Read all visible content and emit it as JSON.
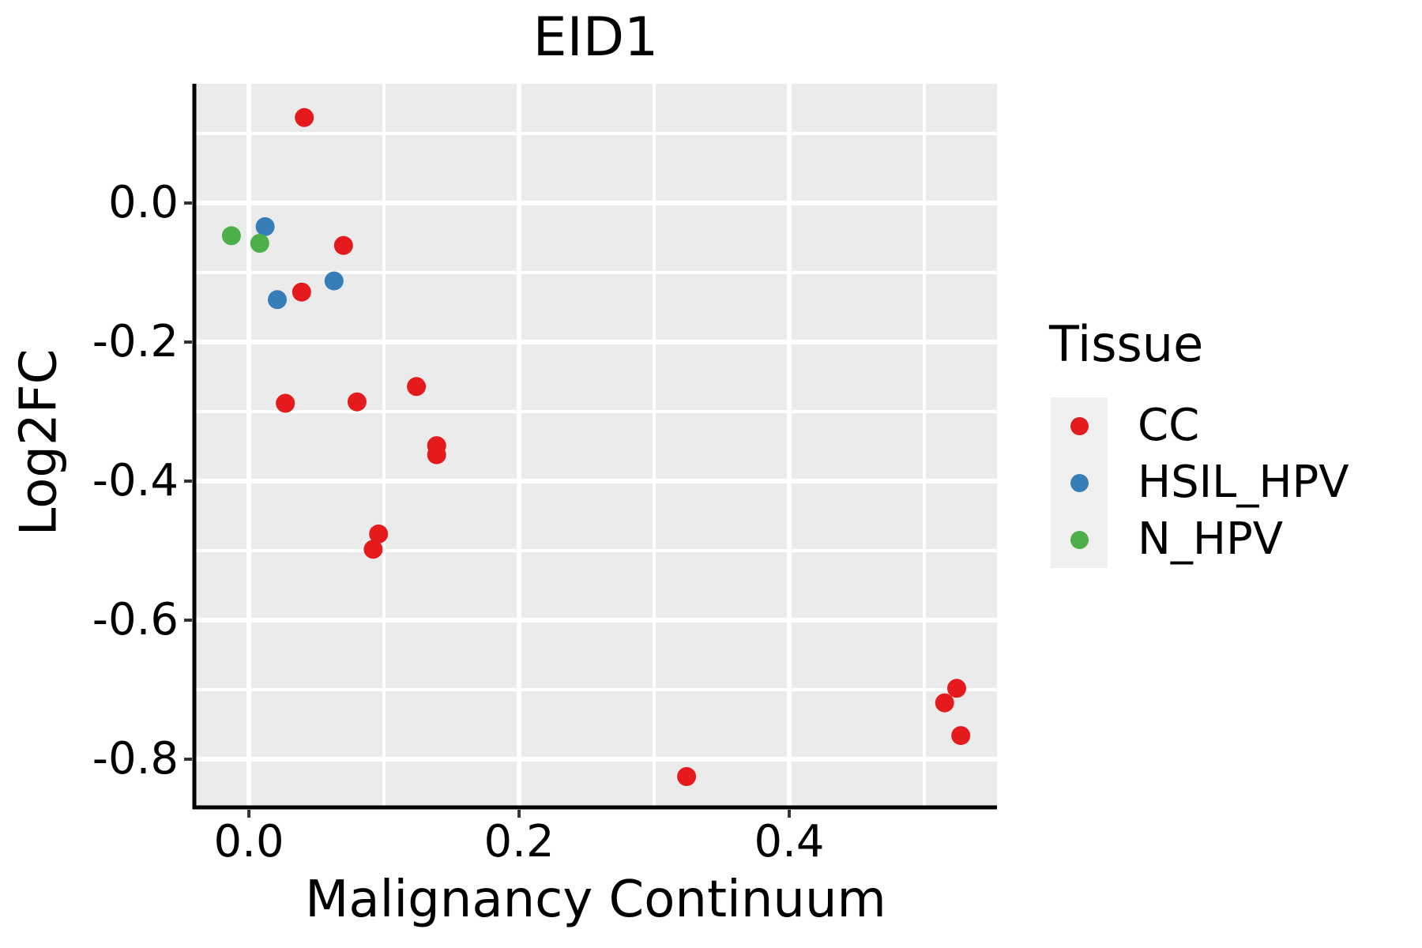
{
  "legend": {
    "title": "Tissue"
  },
  "chart_data": {
    "type": "scatter",
    "title": "EID1",
    "xlabel": "Malignancy Continuum",
    "ylabel": "Log2FC",
    "xlim": [
      -0.0404,
      0.5538
    ],
    "ylim": [
      -0.8693,
      0.1716
    ],
    "x_ticks": [
      {
        "value": 0.0,
        "label": "0.0"
      },
      {
        "value": 0.2,
        "label": "0.2"
      },
      {
        "value": 0.4,
        "label": "0.4"
      }
    ],
    "x_minor_ticks": [
      0.1,
      0.3,
      0.5
    ],
    "y_ticks": [
      {
        "value": 0.0,
        "label": "0.0"
      },
      {
        "value": -0.2,
        "label": "-0.2"
      },
      {
        "value": -0.4,
        "label": "-0.4"
      },
      {
        "value": -0.6,
        "label": "-0.6"
      },
      {
        "value": -0.8,
        "label": "-0.8"
      }
    ],
    "y_minor_ticks": [
      0.1,
      -0.1,
      -0.3,
      -0.5,
      -0.7
    ],
    "grid": "on",
    "legend_position": "right",
    "legend_title": "Tissue",
    "series": [
      {
        "name": "CC",
        "color": "#E41A1C",
        "points": [
          [
            0.041,
            0.123
          ],
          [
            0.07,
            -0.061
          ],
          [
            0.039,
            -0.128
          ],
          [
            0.027,
            -0.288
          ],
          [
            0.08,
            -0.286
          ],
          [
            0.124,
            -0.264
          ],
          [
            0.139,
            -0.349
          ],
          [
            0.139,
            -0.362
          ],
          [
            0.096,
            -0.476
          ],
          [
            0.092,
            -0.498
          ],
          [
            0.324,
            -0.825
          ],
          [
            0.515,
            -0.719
          ],
          [
            0.524,
            -0.698
          ],
          [
            0.527,
            -0.766
          ]
        ]
      },
      {
        "name": "HSIL_HPV",
        "color": "#377EB8",
        "points": [
          [
            0.012,
            -0.034
          ],
          [
            0.021,
            -0.139
          ],
          [
            0.063,
            -0.112
          ]
        ]
      },
      {
        "name": "N_HPV",
        "color": "#4DAF4A",
        "points": [
          [
            -0.013,
            -0.047
          ],
          [
            0.008,
            -0.058
          ]
        ]
      }
    ],
    "style": {
      "panel_background": "#EBEBEB",
      "gridline_color": "#FFFFFF",
      "axis_line_color": "#000000",
      "tick_mark_color": "#333333",
      "text_color": "#000000",
      "point_radius": 12
    }
  }
}
